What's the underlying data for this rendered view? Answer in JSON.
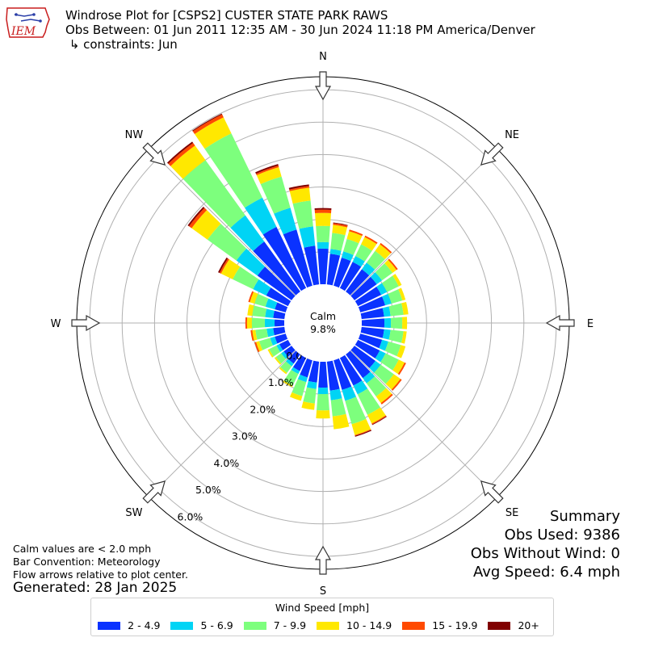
{
  "header": {
    "logo_text": "IEM",
    "title_line1": "Windrose Plot for [CSPS2] CUSTER STATE PARK RAWS",
    "title_line2": "Obs Between: 01 Jun 2011 12:35 AM - 30 Jun 2024 11:18 PM America/Denver",
    "title_line3": " ↳ constraints: Jun"
  },
  "summary": {
    "title": "Summary",
    "obs_used": "Obs Used: 9386",
    "obs_without_wind": "Obs Without Wind: 0",
    "avg_speed": "Avg Speed: 6.4 mph"
  },
  "notes": {
    "line1": "Calm values are < 2.0 mph",
    "line2": "Bar Convention: Meteorology",
    "line3": "Flow arrows relative to plot center.",
    "generated": "Generated: 28 Jan 2025"
  },
  "chart_data": {
    "type": "windrose",
    "calm_label": "Calm",
    "calm_percent": "9.8%",
    "direction_labels": [
      "N",
      "NE",
      "E",
      "SE",
      "S",
      "SW",
      "W",
      "NW"
    ],
    "radial_tick_labels": [
      "0.0%",
      "1.0%",
      "2.0%",
      "3.0%",
      "4.0%",
      "5.0%",
      "6.0%"
    ],
    "radial_max_percent": 6.4,
    "legend_title": "Wind Speed [mph]",
    "bins": [
      {
        "label": "2 - 4.9",
        "color": "#0a32ff"
      },
      {
        "label": "5 - 6.9",
        "color": "#00d4f5"
      },
      {
        "label": "7 - 9.9",
        "color": "#7dff7d"
      },
      {
        "label": "10 - 14.9",
        "color": "#ffe800"
      },
      {
        "label": "15 - 19.9",
        "color": "#ff4a00"
      },
      {
        "label": "20+",
        "color": "#800000"
      }
    ],
    "directions_deg": [
      0,
      10,
      20,
      30,
      40,
      50,
      60,
      70,
      80,
      90,
      100,
      110,
      120,
      130,
      140,
      150,
      160,
      170,
      180,
      190,
      200,
      210,
      220,
      230,
      240,
      250,
      260,
      270,
      280,
      290,
      300,
      310,
      320,
      330,
      340,
      350
    ],
    "cumulative_percent": [
      [
        1.1,
        1.3,
        1.8,
        2.2,
        2.3,
        2.35
      ],
      [
        0.95,
        1.1,
        1.6,
        1.85,
        1.9,
        1.92
      ],
      [
        0.9,
        1.1,
        1.5,
        1.75,
        1.8,
        1.8
      ],
      [
        0.9,
        1.1,
        1.5,
        1.75,
        1.8,
        1.8
      ],
      [
        0.85,
        1.1,
        1.55,
        1.8,
        1.85,
        1.85
      ],
      [
        0.85,
        1.05,
        1.45,
        1.6,
        1.65,
        1.65
      ],
      [
        0.8,
        1.0,
        1.4,
        1.5,
        1.5,
        1.5
      ],
      [
        0.8,
        1.0,
        1.35,
        1.45,
        1.45,
        1.45
      ],
      [
        0.7,
        0.9,
        1.3,
        1.45,
        1.45,
        1.45
      ],
      [
        0.7,
        0.9,
        1.25,
        1.4,
        1.4,
        1.4
      ],
      [
        0.7,
        0.9,
        1.3,
        1.4,
        1.4,
        1.4
      ],
      [
        0.7,
        0.9,
        1.3,
        1.45,
        1.45,
        1.45
      ],
      [
        0.75,
        0.95,
        1.4,
        1.6,
        1.65,
        1.65
      ],
      [
        0.8,
        1.0,
        1.5,
        1.75,
        1.8,
        1.8
      ],
      [
        0.9,
        1.1,
        1.6,
        1.85,
        1.9,
        1.9
      ],
      [
        0.95,
        1.25,
        1.95,
        2.25,
        2.28,
        2.3
      ],
      [
        0.95,
        1.3,
        2.05,
        2.4,
        2.42,
        2.45
      ],
      [
        0.9,
        1.2,
        1.7,
        2.1,
        2.1,
        2.1
      ],
      [
        0.8,
        1.0,
        1.5,
        1.75,
        1.75,
        1.75
      ],
      [
        0.65,
        0.85,
        1.3,
        1.5,
        1.5,
        1.5
      ],
      [
        0.55,
        0.7,
        1.15,
        1.3,
        1.3,
        1.3
      ],
      [
        0.45,
        0.55,
        0.95,
        1.0,
        1.0,
        1.0
      ],
      [
        0.35,
        0.45,
        0.7,
        0.75,
        0.75,
        0.75
      ],
      [
        0.3,
        0.4,
        0.6,
        0.65,
        0.65,
        0.65
      ],
      [
        0.3,
        0.4,
        0.65,
        0.7,
        0.7,
        0.7
      ],
      [
        0.35,
        0.5,
        0.85,
        0.95,
        1.0,
        1.0
      ],
      [
        0.35,
        0.55,
        0.9,
        1.0,
        1.05,
        1.05
      ],
      [
        0.3,
        0.6,
        1.0,
        1.15,
        1.2,
        1.2
      ],
      [
        0.35,
        0.6,
        1.0,
        1.15,
        1.15,
        1.15
      ],
      [
        0.35,
        0.65,
        1.0,
        1.15,
        1.2,
        1.2
      ],
      [
        0.75,
        1.2,
        1.9,
        2.3,
        2.35,
        2.4
      ],
      [
        1.3,
        2.1,
        3.2,
        3.8,
        3.9,
        3.95
      ],
      [
        1.9,
        2.9,
        5.0,
        5.55,
        5.65,
        5.7
      ],
      [
        2.1,
        3.1,
        5.3,
        5.85,
        5.95,
        5.98
      ],
      [
        1.8,
        2.5,
        3.5,
        3.8,
        3.85,
        3.9
      ],
      [
        1.2,
        1.8,
        2.6,
        3.0,
        3.05,
        3.1
      ]
    ]
  }
}
